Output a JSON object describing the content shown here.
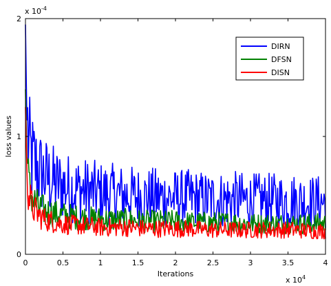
{
  "chart_data": {
    "type": "line",
    "title": "",
    "xlabel": "Iterations",
    "ylabel": "loss values",
    "x_multiplier": "x 10",
    "x_multiplier_exp": "4",
    "y_multiplier": "x 10",
    "y_multiplier_exp": "-4",
    "xlim": [
      0,
      40000
    ],
    "ylim": [
      0,
      0.0002
    ],
    "xticks": [
      0,
      5000,
      10000,
      15000,
      20000,
      25000,
      30000,
      35000,
      40000
    ],
    "xtick_labels": [
      "0",
      "0.5",
      "1",
      "1.5",
      "2",
      "2.5",
      "3",
      "3.5",
      "4"
    ],
    "yticks": [
      0,
      0.0001,
      0.0002
    ],
    "ytick_labels": [
      "0",
      "1",
      "2"
    ],
    "grid": false,
    "legend_position": "top-right",
    "x": [
      0,
      200,
      400,
      600,
      800,
      1000,
      1500,
      2000,
      2500,
      3000,
      3500,
      4000,
      5000,
      6000,
      7000,
      8000,
      9000,
      10000,
      12000,
      14000,
      16000,
      18000,
      20000,
      22000,
      24000,
      26000,
      28000,
      30000,
      32000,
      34000,
      36000,
      38000,
      40000
    ],
    "series": [
      {
        "name": "DIRN",
        "color": "#0000ff",
        "values": [
          0.000195,
          0.00011,
          9e-05,
          8.2e-05,
          7.8e-05,
          7.5e-05,
          7e-05,
          6.6e-05,
          6.3e-05,
          6.1e-05,
          5.9e-05,
          5.7e-05,
          5.5e-05,
          5.3e-05,
          5.2e-05,
          5.1e-05,
          5e-05,
          4.9e-05,
          4.8e-05,
          4.7e-05,
          4.6e-05,
          4.6e-05,
          4.5e-05,
          4.5e-05,
          4.4e-05,
          4.4e-05,
          4.4e-05,
          4.3e-05,
          4.3e-05,
          4.3e-05,
          4.3e-05,
          4.2e-05,
          4.2e-05
        ]
      },
      {
        "name": "DFSN",
        "color": "#008000",
        "values": [
          0.00014,
          8e-05,
          6e-05,
          5.2e-05,
          4.8e-05,
          4.5e-05,
          4.1e-05,
          3.8e-05,
          3.6e-05,
          3.5e-05,
          3.4e-05,
          3.3e-05,
          3.2e-05,
          3.1e-05,
          3e-05,
          3e-05,
          2.9e-05,
          2.9e-05,
          2.8e-05,
          2.8e-05,
          2.7e-05,
          2.7e-05,
          2.7e-05,
          2.6e-05,
          2.6e-05,
          2.6e-05,
          2.6e-05,
          2.5e-05,
          2.5e-05,
          2.5e-05,
          2.5e-05,
          2.5e-05,
          2.5e-05
        ]
      },
      {
        "name": "DISN",
        "color": "#ff0000",
        "values": [
          0.000125,
          7e-05,
          5.2e-05,
          4.5e-05,
          4.1e-05,
          3.8e-05,
          3.4e-05,
          3.1e-05,
          2.9e-05,
          2.8e-05,
          2.7e-05,
          2.6e-05,
          2.5e-05,
          2.4e-05,
          2.4e-05,
          2.3e-05,
          2.3e-05,
          2.2e-05,
          2.2e-05,
          2.2e-05,
          2.1e-05,
          2.1e-05,
          2.1e-05,
          2.1e-05,
          2e-05,
          2e-05,
          2e-05,
          2e-05,
          2e-05,
          2e-05,
          2e-05,
          1.9e-05,
          1.9e-05
        ]
      }
    ]
  }
}
